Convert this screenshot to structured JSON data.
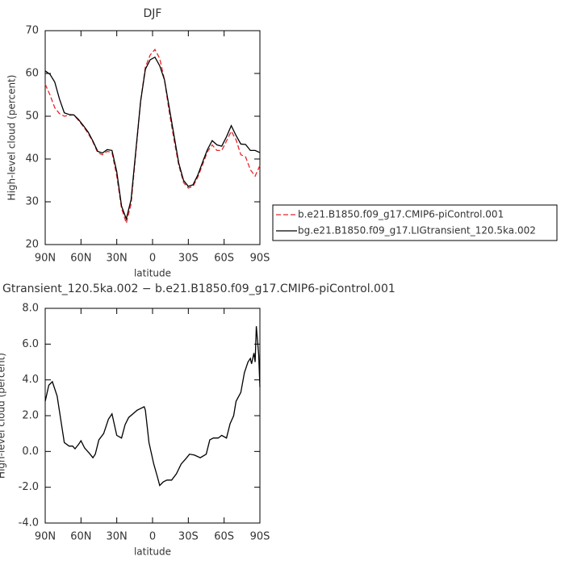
{
  "chart_data": [
    {
      "type": "line",
      "title": "DJF",
      "xlabel": "latitude",
      "ylabel": "High-level cloud (percent)",
      "xlim": [
        90,
        -90
      ],
      "xticks": [
        {
          "value": 90,
          "label": "90N"
        },
        {
          "value": 60,
          "label": "60N"
        },
        {
          "value": 30,
          "label": "30N"
        },
        0,
        {
          "value": -30,
          "label": "30S"
        },
        {
          "value": -60,
          "label": "60S"
        },
        {
          "value": -90,
          "label": "90S"
        }
      ],
      "ylim": [
        20,
        70
      ],
      "yticks": [
        20,
        30,
        40,
        50,
        60,
        70
      ],
      "legend": "right",
      "x": [
        90,
        86,
        82,
        78,
        74,
        70,
        66,
        62,
        58,
        54,
        50,
        46,
        42,
        38,
        34,
        30,
        26,
        22,
        18,
        14,
        10,
        6,
        2,
        -2,
        -6,
        -10,
        -14,
        -18,
        -22,
        -26,
        -30,
        -34,
        -38,
        -42,
        -46,
        -50,
        -54,
        -58,
        -62,
        -66,
        -70,
        -74,
        -78,
        -82,
        -86,
        -90
      ],
      "series": [
        {
          "name": "b.e21.B1850.f09_g17.CMIP6-piControl.001",
          "color": "#e8262b",
          "dashed": true,
          "values": [
            57.5,
            55,
            52,
            50.6,
            50,
            50.2,
            50.3,
            49,
            47.6,
            46,
            44,
            41.5,
            41,
            41.8,
            41.5,
            36,
            28.5,
            25,
            29.5,
            41.5,
            53.5,
            61.5,
            64.3,
            65.6,
            63.5,
            58.5,
            51,
            44.5,
            38.5,
            34.5,
            33.2,
            33.6,
            35.8,
            38.7,
            41.7,
            43.3,
            42,
            42,
            44.2,
            46.5,
            44.5,
            41,
            40.5,
            37.5,
            36,
            38.5
          ]
        },
        {
          "name": "bg.e21.B1850.f09_g17.LIGtransient_120.5ka.002",
          "color": "#000000",
          "dashed": false,
          "values": [
            60.6,
            59.8,
            58,
            54,
            50.8,
            50.4,
            50.3,
            49.2,
            47.8,
            46.3,
            44.2,
            41.8,
            41.4,
            42.2,
            42,
            37,
            29,
            26,
            30.5,
            42,
            53.5,
            61,
            63.2,
            63.8,
            61.8,
            58.5,
            52,
            45.5,
            39,
            35,
            33.6,
            34,
            36.3,
            39.3,
            42.2,
            44.3,
            43.3,
            43,
            45.2,
            47.8,
            45.5,
            43.5,
            43.4,
            42,
            42,
            41.5
          ]
        }
      ]
    },
    {
      "type": "line",
      "title": "Gtransient_120.5ka.002 − b.e21.B1850.f09_g17.CMIP6-piControl.001",
      "xlabel": "latitude",
      "ylabel": "High-level cloud (percent)",
      "xlim": [
        90,
        -90
      ],
      "xticks": [
        {
          "value": 90,
          "label": "90N"
        },
        {
          "value": 60,
          "label": "60N"
        },
        {
          "value": 30,
          "label": "30N"
        },
        0,
        {
          "value": -30,
          "label": "30S"
        },
        {
          "value": -60,
          "label": "60S"
        },
        {
          "value": -90,
          "label": "90S"
        }
      ],
      "ylim": [
        -4,
        8
      ],
      "yticks": [
        {
          "value": -4,
          "label": "-4.0"
        },
        {
          "value": -2,
          "label": "-2.0"
        },
        {
          "value": 0,
          "label": "0.0"
        },
        {
          "value": 2,
          "label": "2.0"
        },
        {
          "value": 4,
          "label": "4.0"
        },
        {
          "value": 6,
          "label": "6.0"
        },
        {
          "value": 8,
          "label": "8.0"
        }
      ],
      "x": [
        90,
        87,
        84,
        80,
        77,
        74,
        70,
        67,
        65,
        62,
        60,
        57,
        53,
        50,
        48,
        45,
        41,
        37,
        34,
        32,
        30,
        26,
        23,
        20,
        13,
        7,
        6,
        3,
        -1,
        -4,
        -6,
        -9,
        -12,
        -16,
        -20,
        -24,
        -28,
        -31,
        -35,
        -40,
        -45,
        -48,
        -51,
        -55,
        -58,
        -62,
        -65,
        -68,
        -70,
        -74,
        -77,
        -80,
        -82,
        -83,
        -85,
        -86,
        -87,
        -89,
        -90
      ],
      "series": [
        {
          "color": "#000000",
          "dashed": false,
          "values": [
            2.8,
            3.7,
            3.9,
            3.1,
            1.8,
            0.5,
            0.3,
            0.3,
            0.15,
            0.4,
            0.6,
            0.2,
            -0.1,
            -0.35,
            -0.15,
            0.65,
            1.0,
            1.8,
            2.1,
            1.5,
            0.9,
            0.75,
            1.5,
            1.9,
            2.3,
            2.5,
            2.3,
            0.5,
            -0.7,
            -1.4,
            -1.9,
            -1.7,
            -1.6,
            -1.6,
            -1.25,
            -0.7,
            -0.4,
            -0.15,
            -0.2,
            -0.35,
            -0.15,
            0.65,
            0.75,
            0.75,
            0.9,
            0.75,
            1.55,
            2.0,
            2.8,
            3.3,
            4.4,
            5.0,
            5.2,
            4.9,
            5.5,
            5.0,
            7.0,
            5.4,
            3.6
          ]
        }
      ]
    }
  ]
}
